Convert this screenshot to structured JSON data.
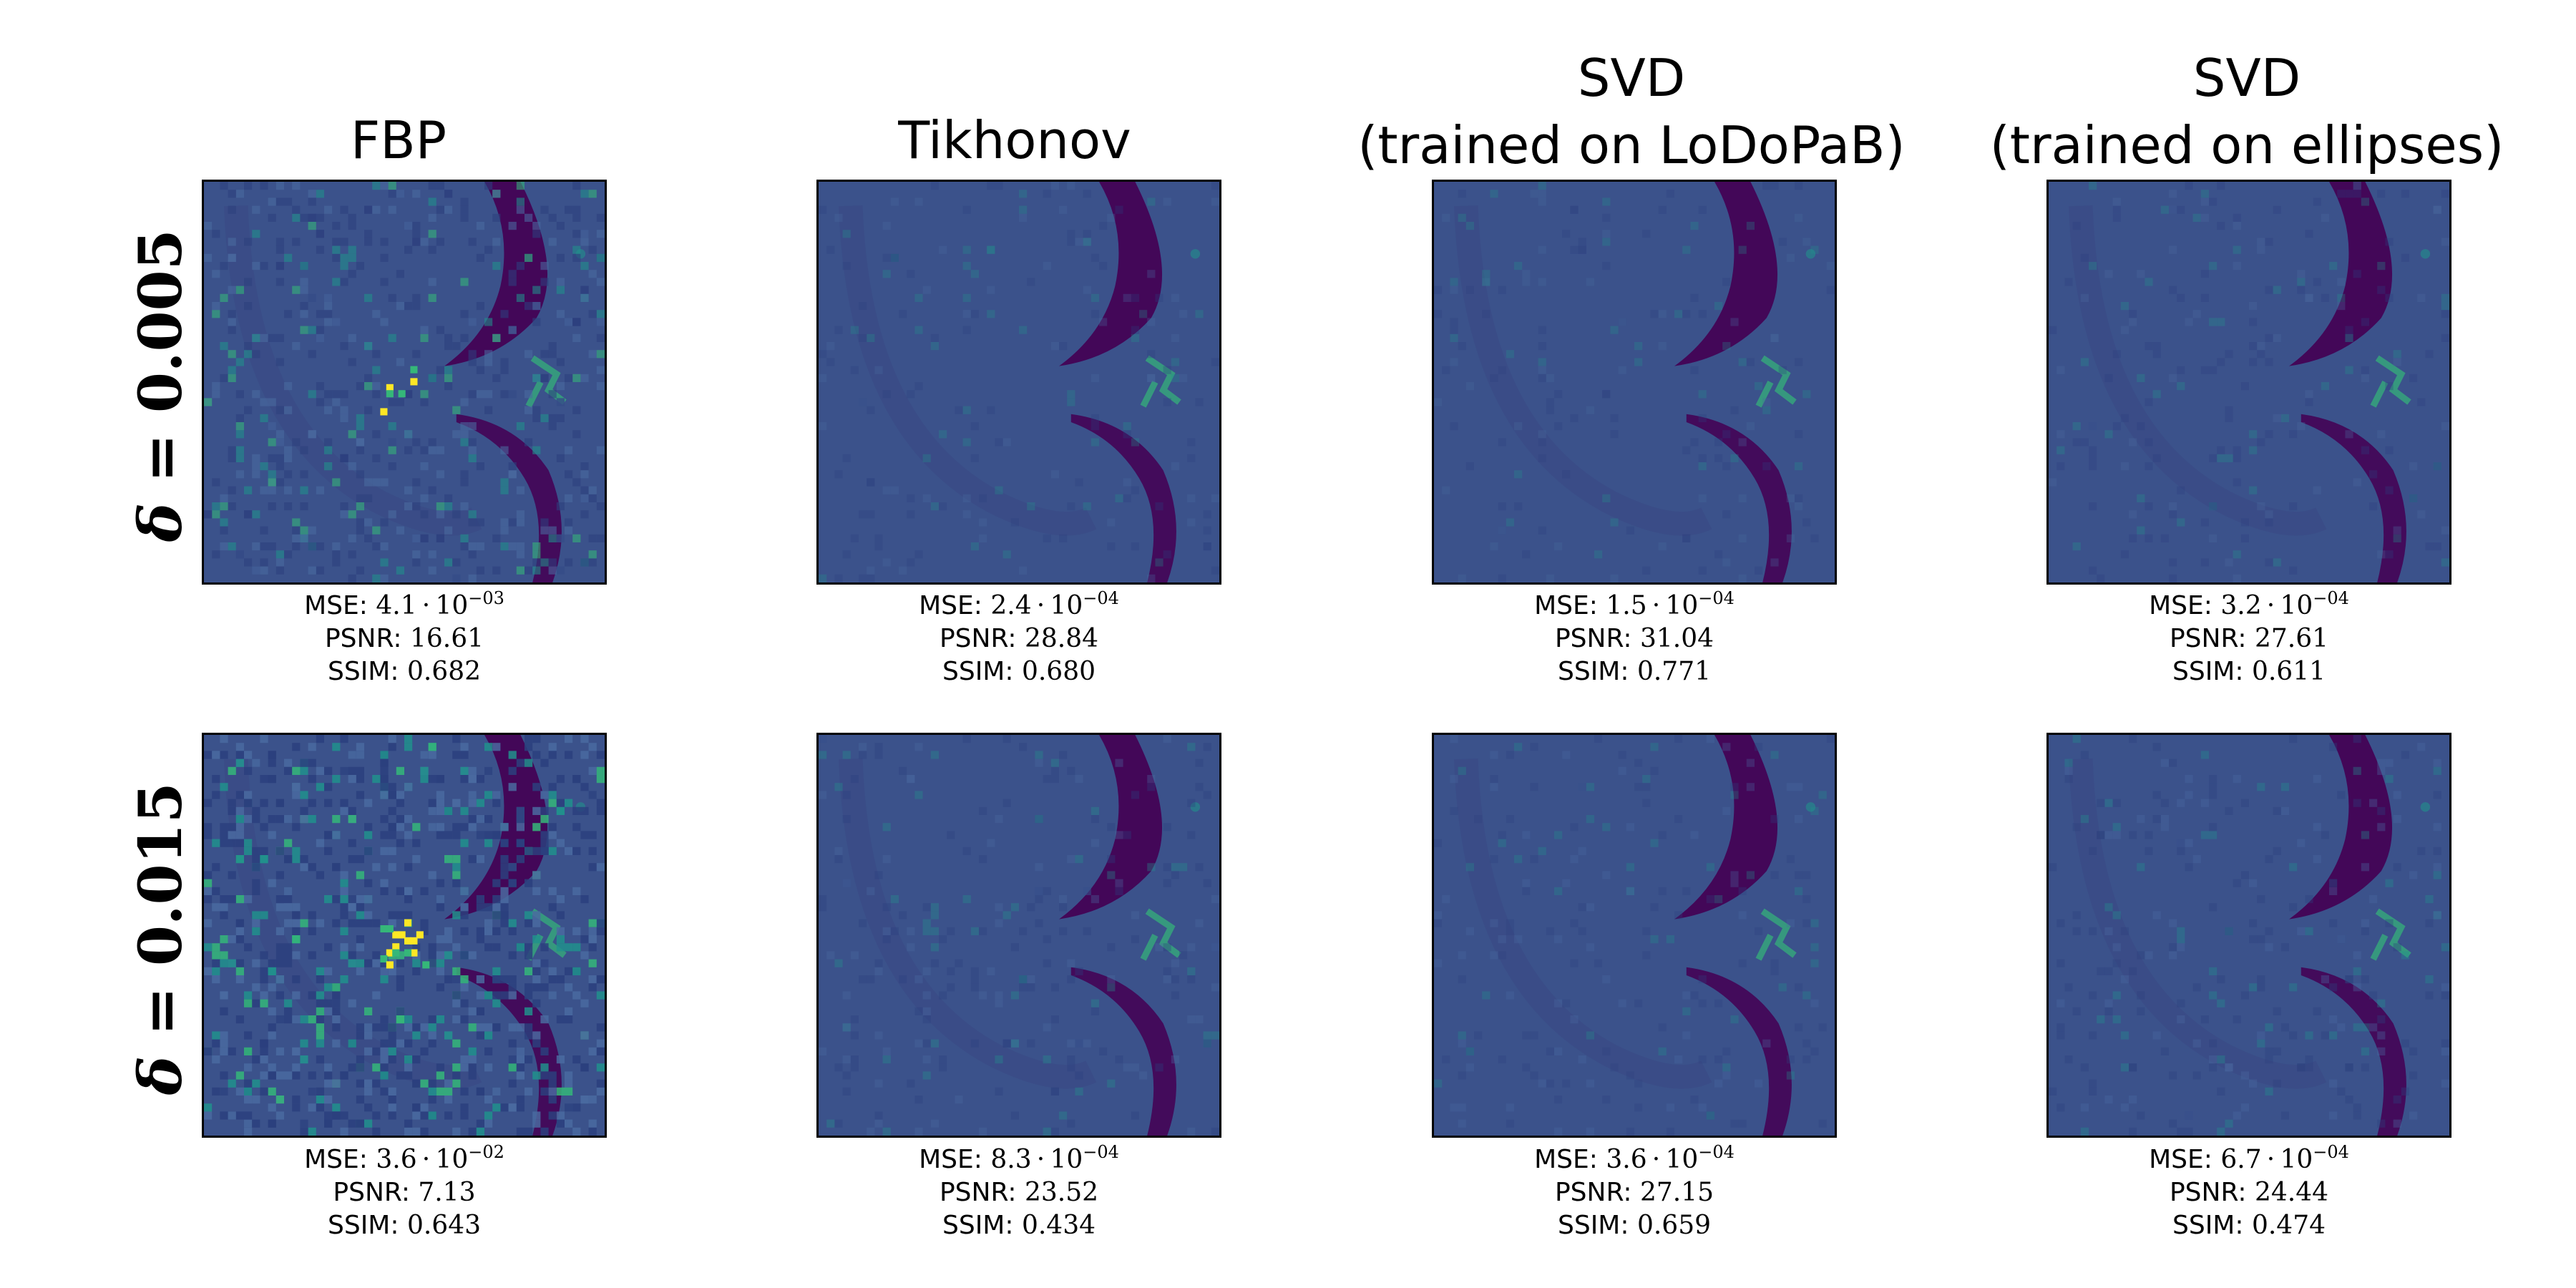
{
  "columns": [
    {
      "title_lines": [
        "FBP"
      ]
    },
    {
      "title_lines": [
        "Tikhonov"
      ]
    },
    {
      "title_lines": [
        "SVD",
        "(trained on LoDoPaB)"
      ]
    },
    {
      "title_lines": [
        "SVD",
        "(trained on ellipses)"
      ]
    }
  ],
  "rows": [
    {
      "symbol": "δ",
      "equals": "=",
      "value": "0.005"
    },
    {
      "symbol": "δ",
      "equals": "=",
      "value": "0.015"
    }
  ],
  "metric_labels": {
    "mse": "MSE:",
    "psnr": "PSNR:",
    "ssim": "SSIM:"
  },
  "panels": [
    [
      {
        "mse_mantissa": "4.1",
        "mse_base": "10",
        "mse_exp": "−03",
        "psnr": "16.61",
        "ssim": "0.682",
        "noise": 0.55
      },
      {
        "mse_mantissa": "2.4",
        "mse_base": "10",
        "mse_exp": "−04",
        "psnr": "28.84",
        "ssim": "0.680",
        "noise": 0.08
      },
      {
        "mse_mantissa": "1.5",
        "mse_base": "10",
        "mse_exp": "−04",
        "psnr": "31.04",
        "ssim": "0.771",
        "noise": 0.06
      },
      {
        "mse_mantissa": "3.2",
        "mse_base": "10",
        "mse_exp": "−04",
        "psnr": "27.61",
        "ssim": "0.611",
        "noise": 0.12
      }
    ],
    [
      {
        "mse_mantissa": "3.6",
        "mse_base": "10",
        "mse_exp": "−02",
        "psnr": "7.13",
        "ssim": "0.643",
        "noise": 1.0
      },
      {
        "mse_mantissa": "8.3",
        "mse_base": "10",
        "mse_exp": "−04",
        "psnr": "23.52",
        "ssim": "0.434",
        "noise": 0.16
      },
      {
        "mse_mantissa": "3.6",
        "mse_base": "10",
        "mse_exp": "−04",
        "psnr": "27.15",
        "ssim": "0.659",
        "noise": 0.1
      },
      {
        "mse_mantissa": "6.7",
        "mse_base": "10",
        "mse_exp": "−04",
        "psnr": "24.44",
        "ssim": "0.474",
        "noise": 0.18
      }
    ]
  ],
  "colors": {
    "background": "#3b528b",
    "dark": "#440154",
    "cyan": "#35b779",
    "teal": "#21918c",
    "yellow": "#fde725",
    "frame": "#000000"
  }
}
